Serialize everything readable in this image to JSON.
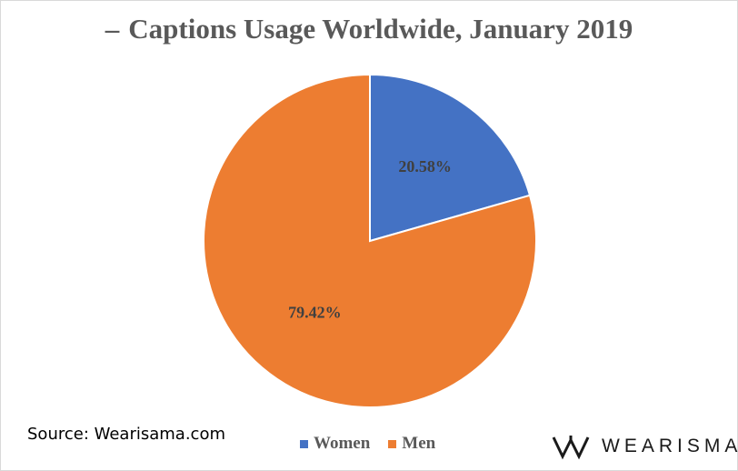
{
  "chart_data": {
    "type": "pie",
    "title": "Captions Usage Worldwide, January 2019",
    "title_marker": "–",
    "categories": [
      "Women",
      "Men"
    ],
    "values": [
      20.58,
      79.42
    ],
    "value_labels": [
      "20.58%",
      "79.42%"
    ],
    "colors": [
      "#4472c4",
      "#ed7d31"
    ],
    "legend_position": "bottom"
  },
  "footer": {
    "source": "Source: Wearisama.com",
    "logo_text": "WEARISMA",
    "logo_icon": "w-logo-icon"
  }
}
